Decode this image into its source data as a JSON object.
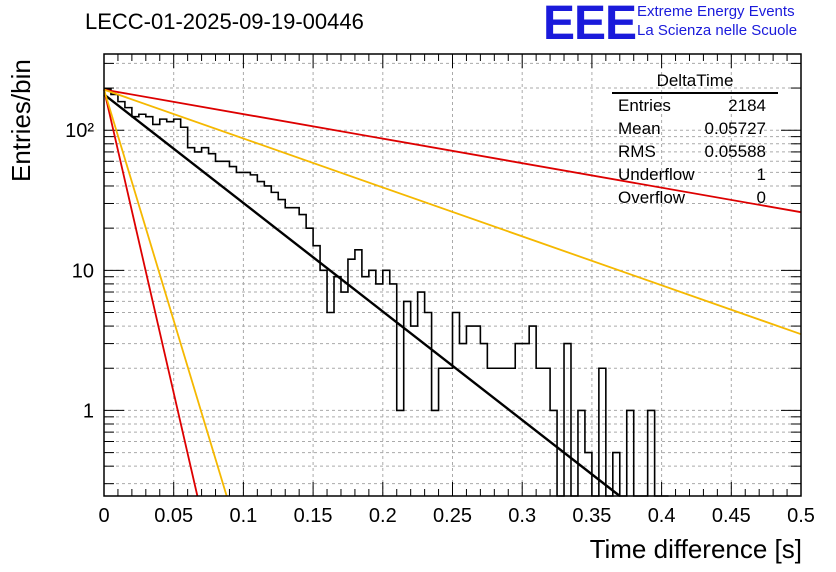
{
  "title": "LECC-01-2025-09-19-00446",
  "logo": {
    "mark": "EEE",
    "line1": "Extreme Energy Events",
    "line2": "La Scienza nelle Scuole"
  },
  "stats": {
    "name": "DeltaTime",
    "rows": [
      {
        "label": "Entries",
        "value": "2184"
      },
      {
        "label": "Mean",
        "value": "0.05727"
      },
      {
        "label": "RMS",
        "value": "0.05588"
      },
      {
        "label": "Underflow",
        "value": "1"
      },
      {
        "label": "Overflow",
        "value": "0"
      }
    ]
  },
  "chart_data": {
    "type": "line",
    "title": "LECC-01-2025-09-19-00446",
    "xlabel": "Time difference [s]",
    "ylabel": "Entries/bin",
    "xlim": [
      0,
      0.5
    ],
    "ylim": [
      0.245,
      350
    ],
    "y_scale": "log",
    "grid": true,
    "x_ticks": [
      "0",
      "0.05",
      "0.1",
      "0.15",
      "0.2",
      "0.25",
      "0.3",
      "0.35",
      "0.4",
      "0.45",
      "0.5"
    ],
    "y_ticks": [
      {
        "value": 1,
        "label": "1"
      },
      {
        "value": 10,
        "label": "10"
      },
      {
        "value": 100,
        "label": "10²"
      }
    ],
    "histogram": {
      "name": "DeltaTime",
      "bin_width": 0.005,
      "bin_start": 0,
      "color": "#000000",
      "values": [
        196,
        180,
        160,
        145,
        125,
        130,
        125,
        110,
        120,
        115,
        120,
        105,
        75,
        70,
        75,
        68,
        60,
        60,
        55,
        50,
        50,
        48,
        43,
        40,
        36,
        32,
        28,
        28,
        25,
        20,
        15,
        10,
        5,
        9,
        7,
        12,
        14,
        9,
        10,
        8,
        10,
        8,
        1,
        6,
        4,
        7,
        5,
        1,
        2,
        2,
        5,
        3,
        4,
        4,
        3,
        2,
        2,
        2,
        2,
        3,
        3,
        4,
        2,
        2,
        1,
        0,
        3,
        0,
        1,
        0.5,
        0,
        2,
        0,
        0.5,
        0,
        1,
        0,
        0,
        1,
        0,
        0
      ]
    },
    "series": [
      {
        "color": "#000000",
        "x": [
          0,
          0.37
        ],
        "y": [
          180,
          0.245
        ]
      },
      {
        "color": "#dd0000",
        "x": [
          0,
          0.5
        ],
        "y": [
          195,
          26
        ]
      },
      {
        "color": "#f5b800",
        "x": [
          0,
          0.5
        ],
        "y": [
          195,
          3.5
        ]
      },
      {
        "color": "#dd0000",
        "x": [
          0,
          0.067
        ],
        "y": [
          195,
          0.245
        ]
      },
      {
        "color": "#f5b800",
        "x": [
          0,
          0.088
        ],
        "y": [
          195,
          0.245
        ]
      }
    ]
  }
}
